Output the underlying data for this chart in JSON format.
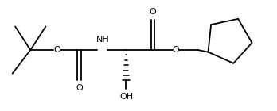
{
  "background": "#ffffff",
  "line_color": "#000000",
  "line_width": 1.3,
  "label_fontsize": 8.0,
  "figsize": [
    3.48,
    1.4
  ],
  "dpi": 100,
  "xlim": [
    0,
    10.0
  ],
  "ylim": [
    0,
    4.0
  ]
}
